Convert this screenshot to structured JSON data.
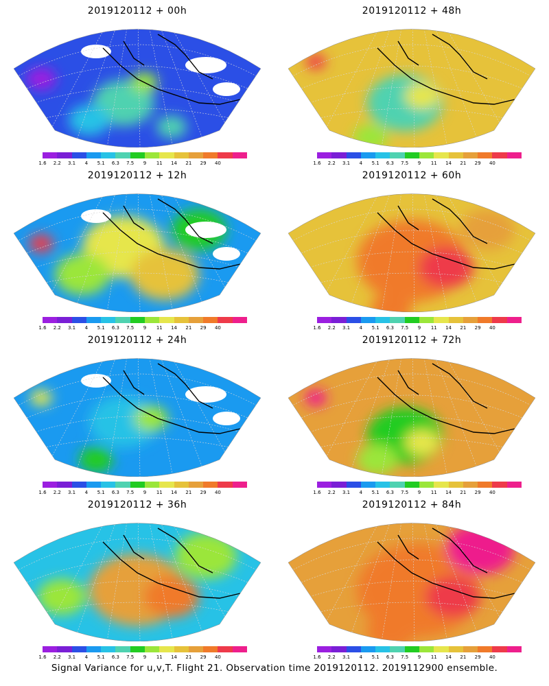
{
  "palette": [
    "#9b1fe0",
    "#7a1fd6",
    "#2b4fe6",
    "#1a9af0",
    "#27c2e6",
    "#4fd2b0",
    "#22cc22",
    "#9be63a",
    "#e6e64c",
    "#e6c23a",
    "#e6a03a",
    "#f07a2a",
    "#ee3a4a",
    "#ee1f8c"
  ],
  "colorbar_ticks": [
    "1.6",
    "2.2",
    "3.1",
    "4",
    "5.1",
    "6.3",
    "7.5",
    "9",
    "11",
    "14",
    "21",
    "29",
    "40"
  ],
  "panels": [
    {
      "id": "f00",
      "title": "2019120112 + 00h",
      "level": 0
    },
    {
      "id": "f48",
      "title": "2019120112 + 48h",
      "level": 4
    },
    {
      "id": "f12",
      "title": "2019120112 + 12h",
      "level": 1
    },
    {
      "id": "f60",
      "title": "2019120112 + 60h",
      "level": 5
    },
    {
      "id": "f24",
      "title": "2019120112 + 24h",
      "level": 2
    },
    {
      "id": "f72",
      "title": "2019120112 + 72h",
      "level": 6
    },
    {
      "id": "f36",
      "title": "2019120112 + 36h",
      "level": 3
    },
    {
      "id": "f84",
      "title": "2019120112 + 84h",
      "level": 7
    }
  ],
  "footer": "Signal Variance for u,v,T. Flight 21. Observation time 2019120112. 2019112900 ensemble."
}
